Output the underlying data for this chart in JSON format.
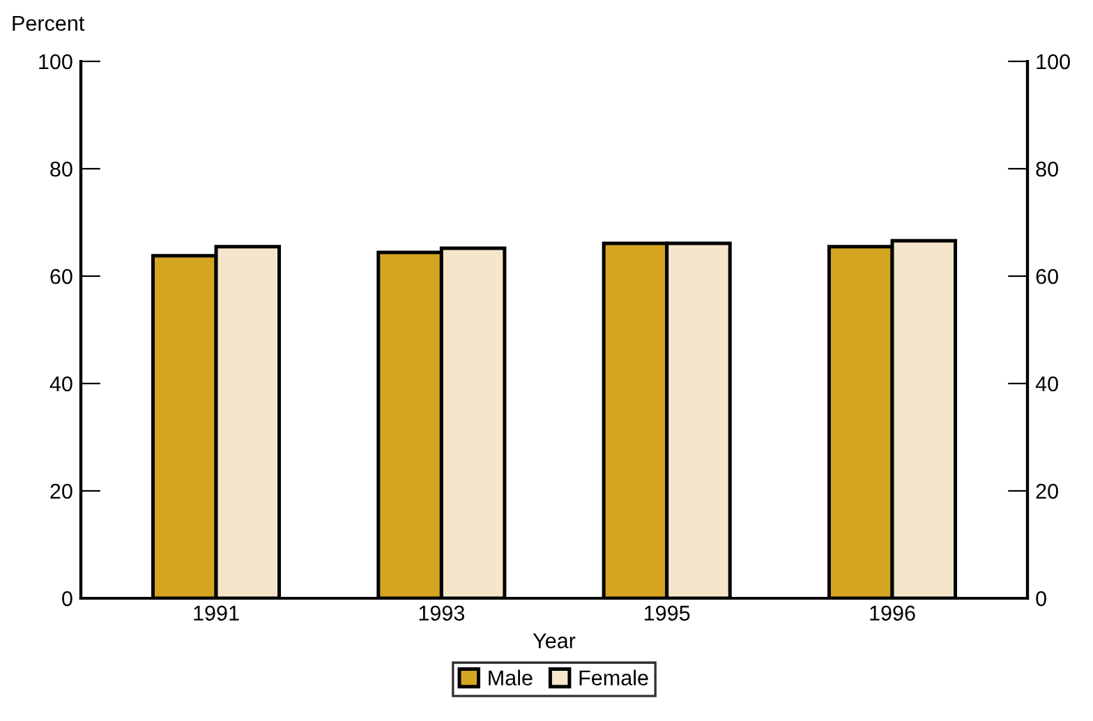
{
  "chart_data": {
    "type": "bar",
    "xlabel": "Year",
    "ylabel": "Percent",
    "categories": [
      "1991",
      "1993",
      "1995",
      "1996"
    ],
    "series": [
      {
        "name": "Male",
        "color": "#d4a520",
        "values": [
          63.8,
          64.4,
          66.1,
          65.5
        ]
      },
      {
        "name": "Female",
        "color": "#f5e6cb",
        "values": [
          65.5,
          65.2,
          66.1,
          66.6
        ]
      }
    ],
    "ylim": [
      0,
      100
    ],
    "yticks": [
      0,
      20,
      40,
      60,
      80,
      100
    ],
    "y2lim": [
      0,
      100
    ],
    "y2ticks": [
      0,
      20,
      40,
      60,
      80,
      100
    ],
    "grid": false,
    "legend": "bottom"
  }
}
